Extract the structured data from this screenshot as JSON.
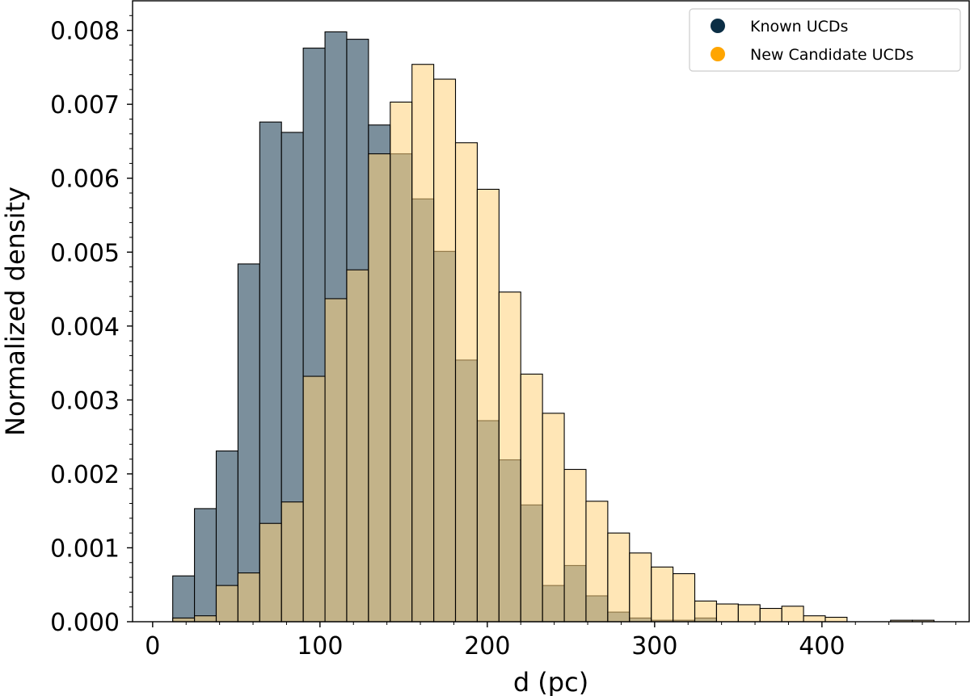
{
  "chart_data": {
    "type": "histogram",
    "title": "",
    "xlabel": "d (pc)",
    "ylabel": "Normalized density",
    "xlim": [
      -12,
      488
    ],
    "ylim": [
      0,
      0.0084
    ],
    "x_ticks": [
      0,
      100,
      200,
      300,
      400
    ],
    "x_tick_labels": [
      "0",
      "100",
      "200",
      "300",
      "400"
    ],
    "y_ticks": [
      0.0,
      0.001,
      0.002,
      0.003,
      0.004,
      0.005,
      0.006,
      0.007,
      0.008
    ],
    "y_tick_labels": [
      "0.000",
      "0.001",
      "0.002",
      "0.003",
      "0.004",
      "0.005",
      "0.006",
      "0.007",
      "0.008"
    ],
    "grid": false,
    "legend_position": "top-right",
    "series": [
      {
        "name": "Known UCDs",
        "color": "#0b2e45",
        "fill": "#7b8f9c",
        "bin_edges": [
          12,
          25,
          38,
          51,
          64,
          77,
          90,
          103,
          116,
          129,
          142,
          155,
          168,
          181,
          194,
          207,
          220,
          233,
          246,
          259,
          272,
          285,
          298,
          311,
          324,
          337
        ],
        "values": [
          0.00062,
          0.00153,
          0.00231,
          0.00484,
          0.00676,
          0.00662,
          0.00776,
          0.00798,
          0.00788,
          0.00672,
          0.00633,
          0.00572,
          0.00501,
          0.00354,
          0.00272,
          0.00219,
          0.00158,
          0.00049,
          0.00076,
          0.00035,
          0.00013,
          5e-05,
          2e-05,
          2e-05,
          5e-05
        ]
      },
      {
        "name": "New Candidate UCDs",
        "color": "#ffa500",
        "fill": "#ffd27a",
        "bin_edges": [
          12,
          25,
          38,
          51,
          64,
          77,
          90,
          103,
          116,
          129,
          142,
          155,
          168,
          181,
          194,
          207,
          220,
          233,
          246,
          259,
          272,
          285,
          298,
          311,
          324,
          337,
          350,
          363,
          376,
          389,
          402,
          415,
          428,
          441,
          454,
          467
        ],
        "values": [
          5e-05,
          8e-05,
          0.00049,
          0.00066,
          0.00133,
          0.00162,
          0.00332,
          0.00437,
          0.00476,
          0.00633,
          0.00703,
          0.00754,
          0.00734,
          0.00648,
          0.00585,
          0.00446,
          0.00335,
          0.00282,
          0.00206,
          0.00163,
          0.0012,
          0.00093,
          0.00074,
          0.00065,
          0.00028,
          0.00024,
          0.00023,
          0.00018,
          0.00021,
          8e-05,
          6e-05,
          0.0,
          0.0,
          2e-05,
          2e-05
        ]
      }
    ]
  }
}
